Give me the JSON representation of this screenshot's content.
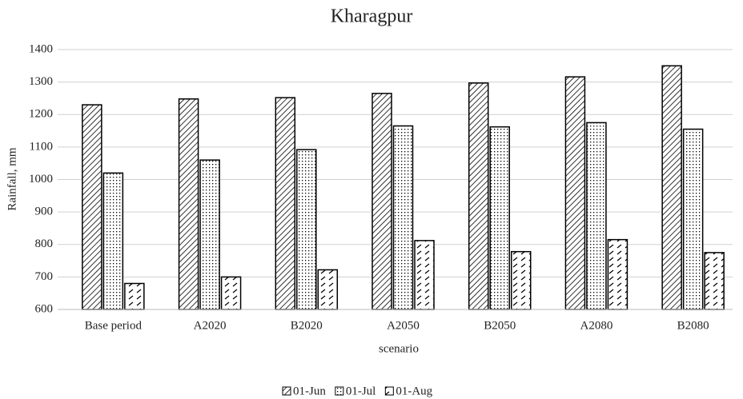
{
  "chart_data": {
    "type": "bar",
    "title": "Kharagpur",
    "x_label": "scenario",
    "y_label": "Rainfall, mm",
    "categories": [
      "Base period",
      "A2020",
      "B2020",
      "A2050",
      "B2050",
      "A2080",
      "B2080"
    ],
    "series": [
      {
        "name": "01-Jun",
        "color": "#000000",
        "pattern": "diagonal",
        "values": [
          1230,
          1248,
          1252,
          1265,
          1297,
          1316,
          1350
        ]
      },
      {
        "name": "01-Jul",
        "color": "#000000",
        "pattern": "dots",
        "values": [
          1020,
          1060,
          1092,
          1165,
          1162,
          1175,
          1155
        ]
      },
      {
        "name": "01-Aug",
        "color": "#000000",
        "pattern": "dashes",
        "values": [
          680,
          700,
          722,
          812,
          778,
          815,
          775
        ]
      }
    ],
    "ylim": [
      600,
      1400
    ],
    "yticks": [
      600,
      700,
      800,
      900,
      1000,
      1100,
      1200,
      1300,
      1400
    ],
    "grid": true,
    "legend": "bottom"
  }
}
